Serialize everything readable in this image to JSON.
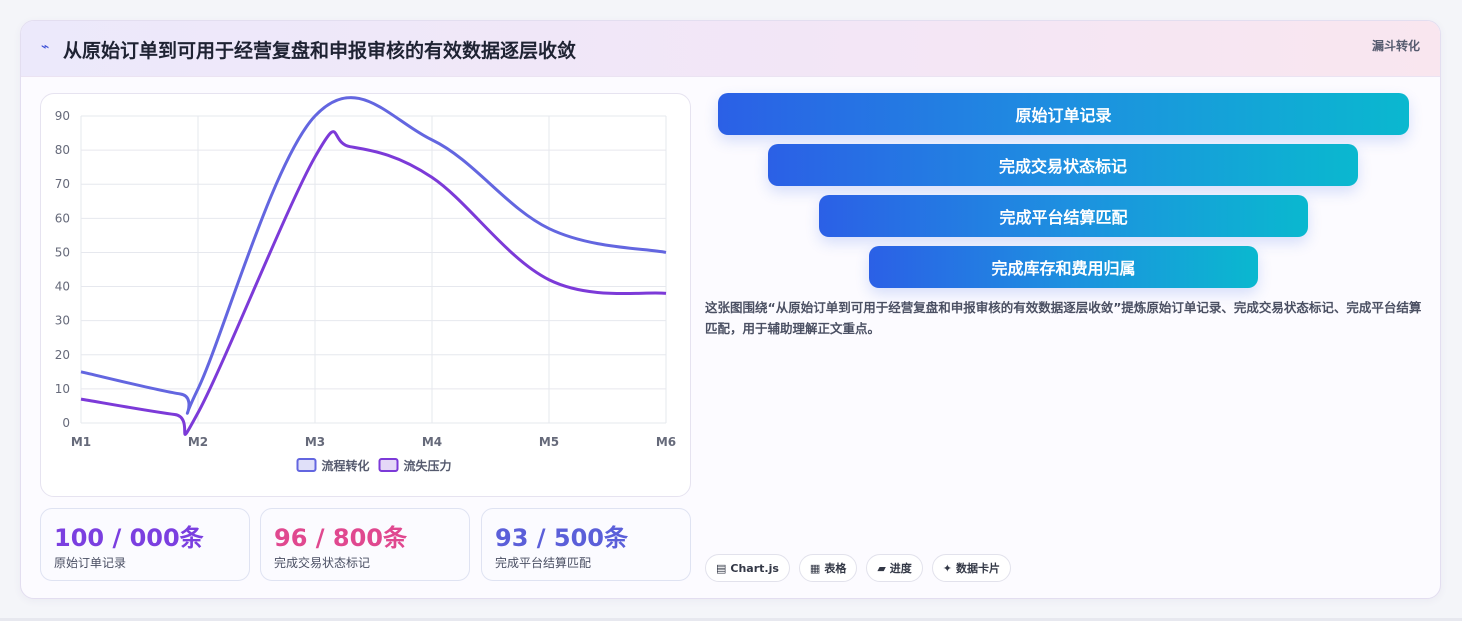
{
  "header": {
    "icon": "⌁",
    "title": "从原始订单到可用于经营复盘和申报审核的有效数据逐层收敛",
    "tag": "漏斗转化"
  },
  "chart_data": {
    "type": "line",
    "categories": [
      "M1",
      "M2",
      "M3",
      "M4",
      "M5",
      "M6"
    ],
    "x_positions": [
      0,
      1,
      2,
      3,
      4,
      5
    ],
    "series": [
      {
        "name": "流程转化",
        "color": "#6366e0",
        "points": [
          [
            0,
            15
          ],
          [
            0.85,
            8.5
          ],
          [
            1,
            10
          ],
          [
            2,
            90
          ],
          [
            3,
            83
          ],
          [
            4,
            57
          ],
          [
            5,
            50
          ]
        ]
      },
      {
        "name": "流失压力",
        "color": "#7c3ad8",
        "points": [
          [
            0,
            7
          ],
          [
            0.8,
            2.5
          ],
          [
            1,
            3
          ],
          [
            2,
            78
          ],
          [
            2.3,
            81
          ],
          [
            3,
            72
          ],
          [
            4,
            42
          ],
          [
            5,
            38
          ]
        ]
      }
    ],
    "ylim": [
      0,
      90
    ],
    "yticks": [
      0,
      10,
      20,
      30,
      40,
      50,
      60,
      70,
      80,
      90
    ],
    "grid": true,
    "legend": "bottom"
  },
  "stats": [
    {
      "value": "100 / 000条",
      "label": "原始订单记录",
      "color": "#7b3fe0"
    },
    {
      "value": "96 / 800条",
      "label": "完成交易状态标记",
      "color": "#e0488f"
    },
    {
      "value": "93 / 500条",
      "label": "完成平台结算匹配",
      "color": "#5b5fd9"
    }
  ],
  "funnel": [
    {
      "label": "原始订单记录"
    },
    {
      "label": "完成交易状态标记"
    },
    {
      "label": "完成平台结算匹配"
    },
    {
      "label": "完成库存和费用归属"
    }
  ],
  "description": "这张图围绕“从原始订单到可用于经营复盘和申报审核的有效数据逐层收敛”提炼原始订单记录、完成交易状态标记、完成平台结算匹配，用于辅助理解正文重点。",
  "chips": [
    {
      "icon": "▤",
      "label": "Chart.js"
    },
    {
      "icon": "▦",
      "label": "表格"
    },
    {
      "icon": "▰",
      "label": "进度"
    },
    {
      "icon": "✦",
      "label": "数据卡片"
    }
  ]
}
